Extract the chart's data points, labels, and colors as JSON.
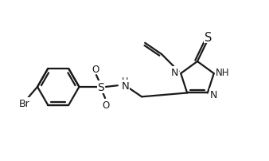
{
  "bg_color": "#ffffff",
  "line_color": "#1a1a1a",
  "line_width": 1.6,
  "font_size": 8.5,
  "figsize": [
    3.38,
    2.03
  ],
  "dpi": 100,
  "xlim": [
    0,
    10
  ],
  "ylim": [
    0,
    6
  ]
}
